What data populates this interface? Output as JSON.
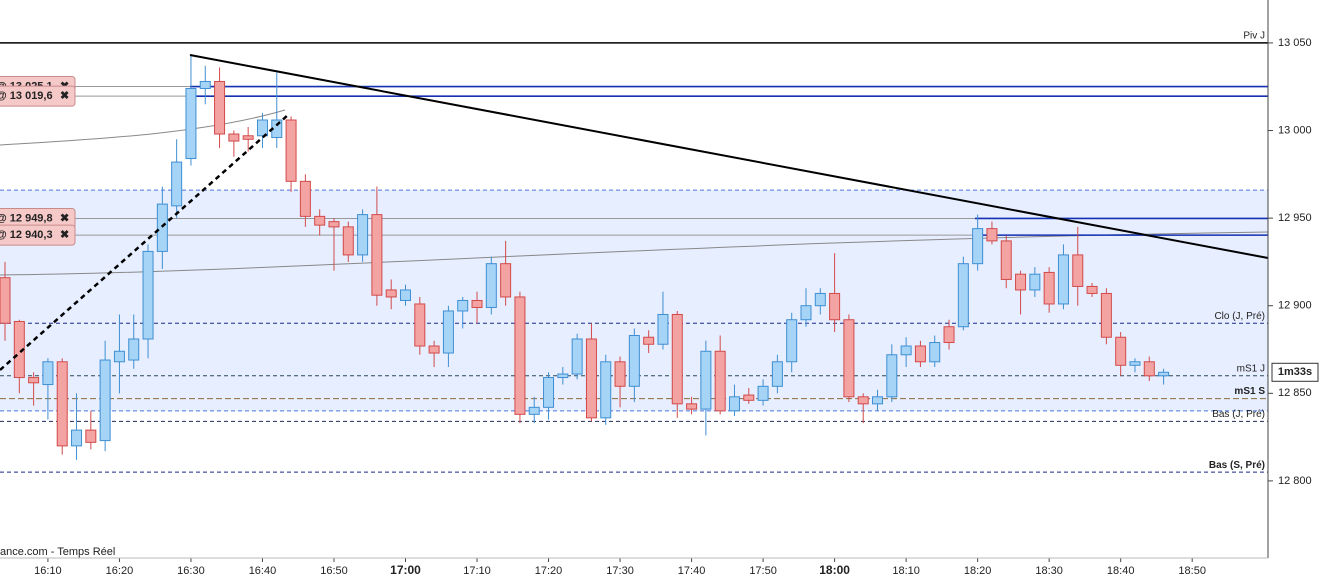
{
  "chart_data": {
    "type": "candlestick",
    "x": [
      964,
      966,
      968,
      970,
      972,
      974,
      976,
      978,
      980,
      982,
      984,
      986,
      988,
      990,
      992,
      994,
      996,
      998,
      1000,
      1002,
      1004,
      1006,
      1008,
      1010,
      1012,
      1014,
      1016,
      1018,
      1020,
      1022,
      1024,
      1026,
      1028,
      1030,
      1032,
      1034,
      1036,
      1038,
      1040,
      1042,
      1044,
      1046,
      1048,
      1050,
      1052,
      1054,
      1056,
      1058,
      1060,
      1062,
      1064,
      1066,
      1068,
      1070,
      1072,
      1074,
      1076,
      1078,
      1080,
      1082,
      1084,
      1086,
      1088,
      1090,
      1092,
      1094,
      1096,
      1098,
      1100,
      1102,
      1104,
      1106,
      1108,
      1110,
      1112,
      1114,
      1116,
      1118,
      1120,
      1122,
      1124,
      1126
    ],
    "open": [
      12916,
      12891,
      12859,
      12855,
      12868,
      12820,
      12829,
      12823,
      12868,
      12869,
      12881,
      12931,
      12957,
      12984,
      13024,
      13028,
      12998,
      12997,
      12997,
      12996,
      13006,
      12971,
      12951,
      12948,
      12945,
      12929,
      12952,
      12909,
      12903,
      12901,
      12877,
      12873,
      12897,
      12903,
      12899,
      12924,
      12905,
      12838,
      12842,
      12859,
      12861,
      12881,
      12836,
      12868,
      12854,
      12882,
      12878,
      12895,
      12844,
      12841,
      12874,
      12840,
      12849,
      12846,
      12854,
      12868,
      12892,
      12900,
      12907,
      12892,
      12848,
      12844,
      12848,
      12872,
      12877,
      12868,
      12888,
      12888,
      12924,
      12944,
      12937,
      12918,
      12909,
      12919,
      12901,
      12929,
      12911,
      12907,
      12882,
      12866,
      12868,
      12860
    ],
    "high": [
      12925,
      12892,
      12862,
      12870,
      12870,
      12850,
      12840,
      12880,
      12895,
      12895,
      12935,
      12968,
      12995,
      13043,
      13037,
      13036,
      13000,
      13002,
      13010,
      13033,
      13008,
      12975,
      12955,
      12950,
      12948,
      12955,
      12968,
      12915,
      12912,
      12905,
      12880,
      12900,
      12905,
      12908,
      12928,
      12937,
      12908,
      12848,
      12862,
      12865,
      12884,
      12890,
      12872,
      12871,
      12887,
      12886,
      12908,
      12897,
      12848,
      12880,
      12883,
      12855,
      12853,
      12858,
      12872,
      12896,
      12910,
      12910,
      12930,
      12895,
      12850,
      12852,
      12878,
      12882,
      12880,
      12883,
      12892,
      12928,
      12952,
      12948,
      12940,
      12920,
      12922,
      12922,
      12935,
      12945,
      12913,
      12910,
      12885,
      12870,
      12871,
      12864
    ],
    "low": [
      12880,
      12850,
      12843,
      12835,
      12815,
      12812,
      12818,
      12817,
      12850,
      12864,
      12870,
      12921,
      12950,
      12980,
      13015,
      12990,
      12985,
      12988,
      12990,
      12990,
      12965,
      12945,
      12940,
      12920,
      12925,
      12925,
      12900,
      12898,
      12900,
      12872,
      12865,
      12865,
      12887,
      12890,
      12895,
      12900,
      12833,
      12833,
      12835,
      12855,
      12858,
      12834,
      12832,
      12842,
      12845,
      12873,
      12875,
      12836,
      12838,
      12826,
      12838,
      12837,
      12844,
      12843,
      12850,
      12862,
      12888,
      12895,
      12885,
      12845,
      12833,
      12840,
      12845,
      12865,
      12865,
      12865,
      12875,
      12886,
      12920,
      12935,
      12910,
      12895,
      12905,
      12896,
      12898,
      12900,
      12905,
      12878,
      12860,
      12862,
      12857,
      12855
    ],
    "close": [
      12890,
      12859,
      12856,
      12868,
      12820,
      12829,
      12822,
      12869,
      12874,
      12881,
      12931,
      12958,
      12982,
      13024,
      13028,
      12998,
      12994,
      12995,
      13006,
      13006,
      12971,
      12951,
      12946,
      12945,
      12929,
      12952,
      12906,
      12905,
      12909,
      12877,
      12873,
      12897,
      12903,
      12899,
      12924,
      12905,
      12838,
      12842,
      12859,
      12861,
      12881,
      12836,
      12868,
      12854,
      12883,
      12878,
      12895,
      12844,
      12841,
      12874,
      12840,
      12848,
      12846,
      12854,
      12868,
      12892,
      12900,
      12907,
      12892,
      12848,
      12844,
      12848,
      12872,
      12877,
      12868,
      12879,
      12879,
      12924,
      12944,
      12937,
      12915,
      12909,
      12918,
      12901,
      12929,
      12911,
      12907,
      12882,
      12866,
      12868,
      12860,
      12862
    ],
    "up_color": "#a6d4f7",
    "up_edge": "#3f8fd2",
    "down_color": "#f4a3a3",
    "down_edge": "#d24a4a",
    "xlim": [
      963.3,
      1140.6
    ],
    "ylim": [
      12756,
      13074.5
    ],
    "xticks": [
      {
        "value": 970,
        "label": "16:10"
      },
      {
        "value": 980,
        "label": "16:20"
      },
      {
        "value": 990,
        "label": "16:30"
      },
      {
        "value": 1000,
        "label": "16:40"
      },
      {
        "value": 1010,
        "label": "16:50"
      },
      {
        "value": 1020,
        "label": "17:00"
      },
      {
        "value": 1030,
        "label": "17:10"
      },
      {
        "value": 1040,
        "label": "17:20"
      },
      {
        "value": 1050,
        "label": "17:30"
      },
      {
        "value": 1060,
        "label": "17:40"
      },
      {
        "value": 1070,
        "label": "17:50"
      },
      {
        "value": 1080,
        "label": "18:00"
      },
      {
        "value": 1090,
        "label": "18:10"
      },
      {
        "value": 1100,
        "label": "18:20"
      },
      {
        "value": 1110,
        "label": "18:30"
      },
      {
        "value": 1120,
        "label": "18:40"
      },
      {
        "value": 1130,
        "label": "18:50"
      }
    ],
    "yticks": [
      {
        "value": 13050,
        "label": "13 050"
      },
      {
        "value": 13000,
        "label": "13 000"
      },
      {
        "value": 12950,
        "label": "12 950"
      },
      {
        "value": 12900,
        "label": "12 900"
      },
      {
        "value": 12850,
        "label": "12 850"
      },
      {
        "value": 12800,
        "label": "12 800"
      }
    ],
    "zone": {
      "from": 12840,
      "to": 12966,
      "color": "#e6eeff",
      "edge": "#4a78e0"
    },
    "levels": [
      {
        "label": "Piv J",
        "value": 13050,
        "color": "#000000",
        "dash": "none",
        "label_color": "#000000",
        "bold": false
      },
      {
        "label": "Clo (J, Pré)",
        "value": 12890,
        "color": "#1a2a8a",
        "dash": "4 3",
        "label_color": "#1a2a8a",
        "bold": false
      },
      {
        "label": "mS1 J",
        "value": 12860,
        "color": "#2a4a5a",
        "dash": "4 3",
        "label_color": "#2a8a2a",
        "bold": false
      },
      {
        "label": "mS1 S",
        "value": 12847,
        "color": "#8b6a3a",
        "dash": "6 3",
        "label_color": "#8b5a2b",
        "bold": true
      },
      {
        "label": "Bas (J, Pré)",
        "value": 12834,
        "color": "#1a2a5a",
        "dash": "4 3",
        "label_color": "#1a2a8a",
        "bold": false
      },
      {
        "label": "Bas (S, Pré)",
        "value": 12805,
        "color": "#1a2a8a",
        "dash": "4 3",
        "label_color": "#1a2a8a",
        "bold": true
      }
    ],
    "orders": [
      {
        "label": "@ 13 025,1",
        "value": 13025.1
      },
      {
        "label": "@ 13 019,6",
        "value": 13019.6
      },
      {
        "label": "@ 12 949,8",
        "value": 12949.8
      },
      {
        "label": "@ 12 940,3",
        "value": 12940.3
      }
    ],
    "countdown": "1m33s",
    "source": "ance.com - Temps Réel"
  }
}
